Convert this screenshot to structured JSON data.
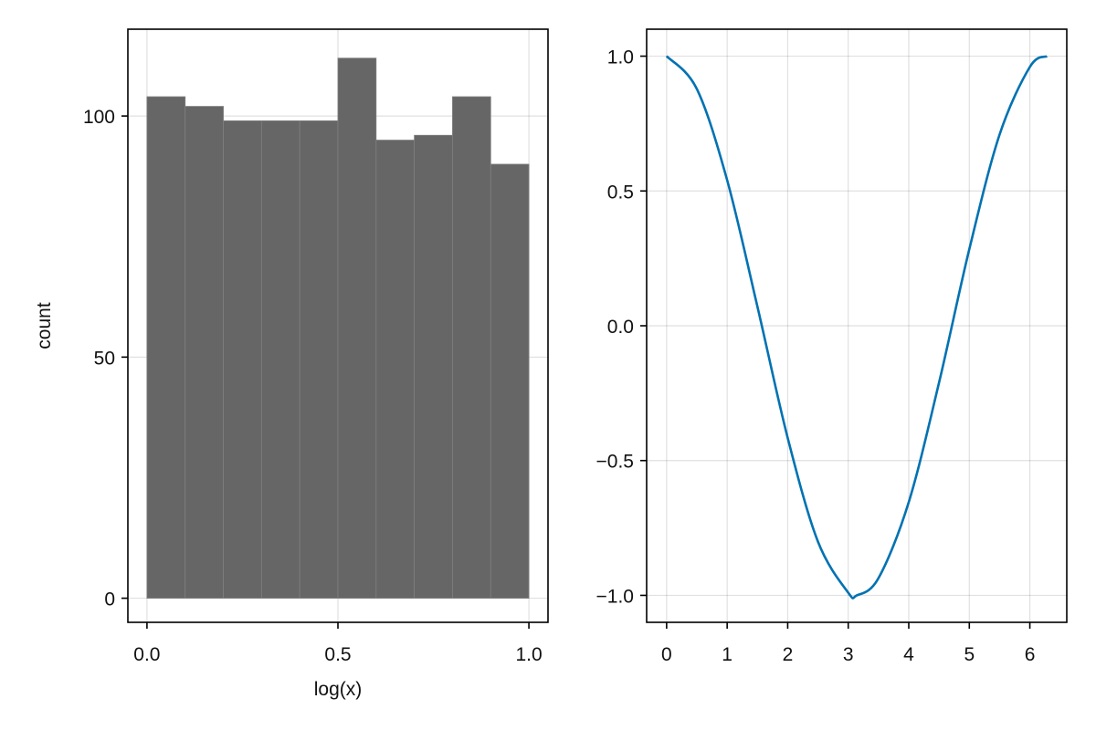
{
  "colors": {
    "background": "#ffffff",
    "bar_fill": "#666666",
    "bar_edge": "#7f7f7f",
    "line": "#0072b2",
    "frame": "#000000"
  },
  "chart_data": [
    {
      "type": "bar",
      "subtype": "histogram",
      "title": "",
      "xlabel": "log(x)",
      "ylabel": "count",
      "bin_edges": [
        0.0,
        0.1,
        0.2,
        0.3,
        0.4,
        0.5,
        0.6,
        0.7,
        0.8,
        0.9,
        1.0
      ],
      "values": [
        104,
        102,
        99,
        99,
        99,
        112,
        95,
        96,
        104,
        90
      ],
      "xlim": [
        -0.05,
        1.05
      ],
      "ylim": [
        -5,
        118
      ],
      "xticks": [
        0.0,
        0.5,
        1.0
      ],
      "xtick_labels": [
        "0.0",
        "0.5",
        "1.0"
      ],
      "yticks": [
        0,
        50,
        100
      ],
      "ytick_labels": [
        "0",
        "50",
        "100"
      ],
      "grid": true
    },
    {
      "type": "line",
      "title": "",
      "xlabel": "",
      "ylabel": "",
      "function": "cos(x)",
      "x_range": [
        0,
        6.2832
      ],
      "x": [
        0,
        0.5,
        1,
        1.5,
        2,
        2.5,
        3,
        3.1416,
        3.5,
        4,
        4.5,
        5,
        5.5,
        6,
        6.2832
      ],
      "y": [
        1.0,
        0.878,
        0.54,
        0.071,
        -0.416,
        -0.801,
        -0.99,
        -1.0,
        -0.936,
        -0.654,
        -0.211,
        0.284,
        0.709,
        0.96,
        1.0
      ],
      "xlim": [
        -0.33,
        6.61
      ],
      "ylim": [
        -1.1,
        1.1
      ],
      "xticks": [
        0,
        1,
        2,
        3,
        4,
        5,
        6
      ],
      "xtick_labels": [
        "0",
        "1",
        "2",
        "3",
        "4",
        "5",
        "6"
      ],
      "yticks": [
        1.0,
        0.5,
        0.0,
        -0.5,
        -1.0
      ],
      "ytick_labels": [
        "1.0",
        "0.5",
        "0.0",
        "−0.5",
        "−1.0"
      ],
      "grid": true
    }
  ]
}
